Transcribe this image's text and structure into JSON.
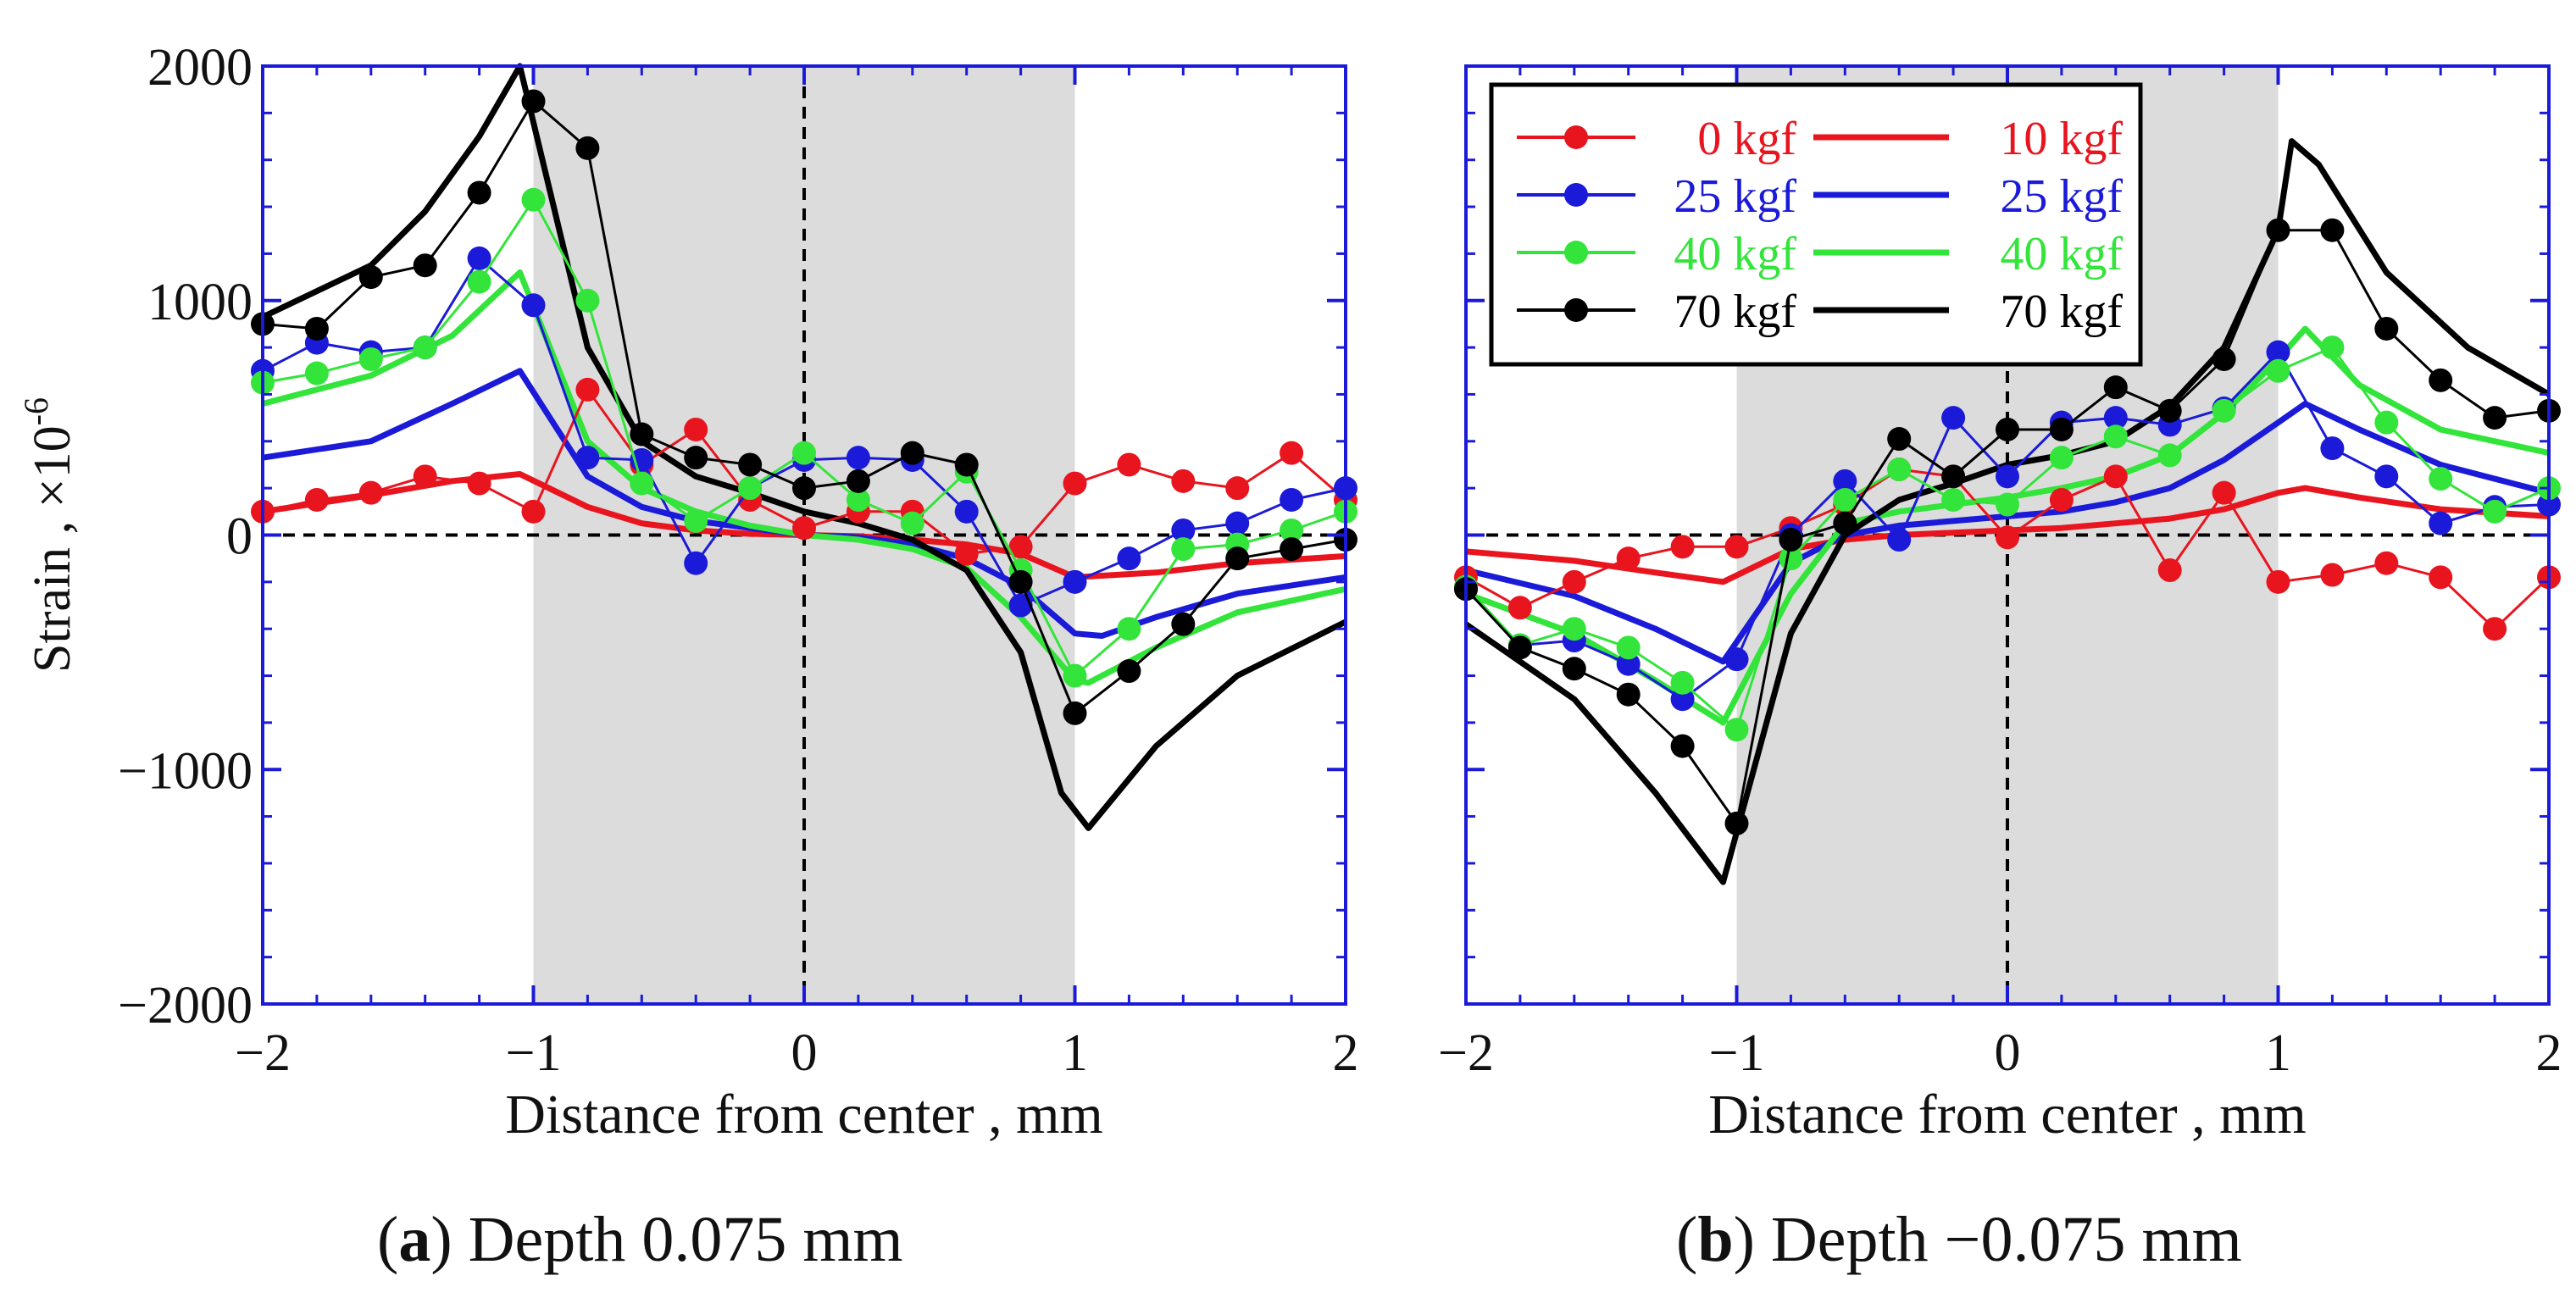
{
  "ylabel_main": "Strain ,",
  "ylabel_unit": "×10",
  "ylabel_exp": "-6",
  "legend": {
    "rows": [
      {
        "left": "0 kgf",
        "left_color": "#e8141e",
        "right": "10 kgf",
        "right_color": "#e8141e"
      },
      {
        "left": "25 kgf",
        "left_color": "#1a1ad8",
        "right": "25 kgf",
        "right_color": "#1a1ad8"
      },
      {
        "left": "40 kgf",
        "left_color": "#33e43a",
        "right": "40 kgf",
        "right_color": "#33e43a"
      },
      {
        "left": "70 kgf",
        "left_color": "#000000",
        "right": "70 kgf",
        "right_color": "#000000"
      }
    ]
  },
  "chart_data": [
    {
      "type": "line",
      "panel": "a",
      "caption_letter": "a",
      "caption_text": " Depth 0.075 mm",
      "xlabel": "Distance from center , mm",
      "ylabel": "Strain , ×10-6",
      "xlim": [
        -2,
        2
      ],
      "ylim": [
        -2000,
        2000
      ],
      "xticks": [
        -2,
        -1,
        0,
        1,
        2
      ],
      "yticks": [
        -2000,
        -1000,
        0,
        1000,
        2000
      ],
      "xtick_labels": [
        "−2",
        "−1",
        "0",
        "1",
        "2"
      ],
      "ytick_labels": [
        "−2000",
        "−1000",
        "0",
        "1000",
        "2000"
      ],
      "shaded_region": [
        -1,
        1
      ],
      "series": [
        {
          "name": "0 kgf",
          "kind": "marker",
          "color": "#e8141e",
          "x": [
            -2,
            -1.8,
            -1.6,
            -1.4,
            -1.2,
            -1,
            -0.8,
            -0.6,
            -0.4,
            -0.2,
            0,
            0.2,
            0.4,
            0.6,
            0.8,
            1,
            1.2,
            1.4,
            1.6,
            1.8,
            2
          ],
          "y": [
            100,
            150,
            180,
            250,
            220,
            100,
            620,
            300,
            450,
            150,
            30,
            100,
            100,
            -80,
            -50,
            220,
            300,
            230,
            200,
            350,
            150
          ]
        },
        {
          "name": "25 kgf",
          "kind": "marker",
          "color": "#1a1ad8",
          "x": [
            -2,
            -1.8,
            -1.6,
            -1.4,
            -1.2,
            -1,
            -0.8,
            -0.6,
            -0.4,
            -0.2,
            0,
            0.2,
            0.4,
            0.6,
            0.8,
            1,
            1.2,
            1.4,
            1.6,
            1.8,
            2
          ],
          "y": [
            700,
            820,
            780,
            800,
            1180,
            980,
            330,
            320,
            -120,
            200,
            320,
            330,
            320,
            100,
            -300,
            -200,
            -100,
            20,
            50,
            150,
            200
          ]
        },
        {
          "name": "40 kgf",
          "kind": "marker",
          "color": "#33e43a",
          "x": [
            -2,
            -1.8,
            -1.6,
            -1.4,
            -1.2,
            -1,
            -0.8,
            -0.6,
            -0.4,
            -0.2,
            0,
            0.2,
            0.4,
            0.6,
            0.8,
            1,
            1.2,
            1.4,
            1.6,
            1.8,
            2
          ],
          "y": [
            650,
            690,
            750,
            800,
            1080,
            1430,
            1000,
            220,
            60,
            200,
            350,
            150,
            50,
            270,
            -150,
            -600,
            -400,
            -60,
            -40,
            20,
            100
          ]
        },
        {
          "name": "70 kgf",
          "kind": "marker",
          "color": "#000000",
          "x": [
            -2,
            -1.8,
            -1.6,
            -1.4,
            -1.2,
            -1,
            -0.8,
            -0.6,
            -0.4,
            -0.2,
            0,
            0.2,
            0.4,
            0.6,
            0.8,
            1,
            1.2,
            1.4,
            1.6,
            1.8,
            2
          ],
          "y": [
            900,
            880,
            1100,
            1150,
            1460,
            1850,
            1650,
            430,
            330,
            300,
            200,
            230,
            350,
            300,
            -200,
            -760,
            -580,
            -380,
            -100,
            -60,
            -20
          ]
        },
        {
          "name": "10 kgf",
          "kind": "line",
          "color": "#e8141e",
          "x": [
            -2,
            -1.6,
            -1.3,
            -1.05,
            -0.8,
            -0.6,
            -0.4,
            -0.2,
            0,
            0.2,
            0.4,
            0.6,
            0.8,
            1,
            1.3,
            1.6,
            2
          ],
          "y": [
            100,
            170,
            230,
            260,
            120,
            50,
            20,
            5,
            0,
            -5,
            -20,
            -40,
            -80,
            -180,
            -160,
            -120,
            -90
          ]
        },
        {
          "name": "25 kgf",
          "kind": "line",
          "color": "#1a1ad8",
          "x": [
            -2,
            -1.6,
            -1.3,
            -1.05,
            -0.8,
            -0.6,
            -0.4,
            -0.2,
            0,
            0.2,
            0.4,
            0.6,
            0.8,
            1,
            1.1,
            1.3,
            1.6,
            2
          ],
          "y": [
            330,
            400,
            560,
            700,
            250,
            120,
            60,
            30,
            0,
            -10,
            -40,
            -100,
            -220,
            -420,
            -430,
            -350,
            -250,
            -180
          ]
        },
        {
          "name": "40 kgf",
          "kind": "line",
          "color": "#33e43a",
          "x": [
            -2,
            -1.6,
            -1.3,
            -1.05,
            -0.8,
            -0.6,
            -0.4,
            -0.2,
            0,
            0.2,
            0.4,
            0.6,
            0.8,
            1,
            1.05,
            1.3,
            1.6,
            2
          ],
          "y": [
            560,
            680,
            850,
            1120,
            400,
            200,
            100,
            40,
            0,
            -20,
            -60,
            -140,
            -350,
            -620,
            -630,
            -480,
            -330,
            -230
          ]
        },
        {
          "name": "70 kgf",
          "kind": "line",
          "color": "#000000",
          "x": [
            -2,
            -1.6,
            -1.4,
            -1.2,
            -1.05,
            -0.8,
            -0.6,
            -0.4,
            -0.2,
            0,
            0.2,
            0.4,
            0.6,
            0.8,
            0.95,
            1.05,
            1.3,
            1.6,
            2
          ],
          "y": [
            930,
            1150,
            1380,
            1700,
            2000,
            800,
            400,
            250,
            180,
            100,
            50,
            -20,
            -150,
            -500,
            -1100,
            -1250,
            -900,
            -600,
            -370
          ]
        }
      ]
    },
    {
      "type": "line",
      "panel": "b",
      "caption_letter": "b",
      "caption_text": " Depth −0.075 mm",
      "xlabel": "Distance from center , mm",
      "xlim": [
        -2,
        2
      ],
      "ylim": [
        -2000,
        2000
      ],
      "xticks": [
        -2,
        -1,
        0,
        1,
        2
      ],
      "yticks": [
        -2000,
        -1000,
        0,
        1000,
        2000
      ],
      "xtick_labels": [
        "−2",
        "−1",
        "0",
        "1",
        "2"
      ],
      "shaded_region": [
        -1,
        1
      ],
      "series": [
        {
          "name": "0 kgf",
          "kind": "marker",
          "color": "#e8141e",
          "x": [
            -2,
            -1.8,
            -1.6,
            -1.4,
            -1.2,
            -1,
            -0.8,
            -0.6,
            -0.4,
            -0.2,
            0,
            0.2,
            0.4,
            0.6,
            0.8,
            1,
            1.2,
            1.4,
            1.6,
            1.8,
            2
          ],
          "y": [
            -180,
            -310,
            -200,
            -100,
            -50,
            -50,
            30,
            130,
            280,
            250,
            -10,
            150,
            250,
            -150,
            180,
            -200,
            -170,
            -120,
            -180,
            -400,
            -180
          ]
        },
        {
          "name": "25 kgf",
          "kind": "marker",
          "color": "#1a1ad8",
          "x": [
            -2,
            -1.8,
            -1.6,
            -1.4,
            -1.2,
            -1,
            -0.8,
            -0.6,
            -0.4,
            -0.2,
            0,
            0.2,
            0.4,
            0.6,
            0.8,
            1,
            1.2,
            1.4,
            1.6,
            1.8,
            2
          ],
          "y": [
            -230,
            -470,
            -450,
            -550,
            -700,
            -530,
            0,
            230,
            -20,
            500,
            250,
            480,
            500,
            470,
            540,
            780,
            370,
            250,
            50,
            120,
            130
          ]
        },
        {
          "name": "40 kgf",
          "kind": "marker",
          "color": "#33e43a",
          "x": [
            -2,
            -1.8,
            -1.6,
            -1.4,
            -1.2,
            -1,
            -0.8,
            -0.6,
            -0.4,
            -0.2,
            0,
            0.2,
            0.4,
            0.6,
            0.8,
            1,
            1.2,
            1.4,
            1.6,
            1.8,
            2
          ],
          "y": [
            -220,
            -470,
            -400,
            -480,
            -630,
            -830,
            -100,
            150,
            280,
            150,
            130,
            330,
            420,
            340,
            530,
            700,
            800,
            480,
            240,
            100,
            200
          ]
        },
        {
          "name": "70 kgf",
          "kind": "marker",
          "color": "#000000",
          "x": [
            -2,
            -1.8,
            -1.6,
            -1.4,
            -1.2,
            -1,
            -0.8,
            -0.6,
            -0.4,
            -0.2,
            0,
            0.2,
            0.4,
            0.6,
            0.8,
            1,
            1.2,
            1.4,
            1.6,
            1.8,
            2
          ],
          "y": [
            -230,
            -480,
            -570,
            -680,
            -900,
            -1230,
            -20,
            50,
            410,
            250,
            450,
            450,
            630,
            530,
            750,
            1300,
            1300,
            880,
            660,
            500,
            530
          ]
        },
        {
          "name": "10 kgf",
          "kind": "line",
          "color": "#e8141e",
          "x": [
            -2,
            -1.6,
            -1.3,
            -1.05,
            -0.8,
            -0.6,
            -0.4,
            -0.2,
            0,
            0.2,
            0.4,
            0.6,
            0.8,
            1,
            1.1,
            1.3,
            1.6,
            2
          ],
          "y": [
            -70,
            -110,
            -160,
            -200,
            -60,
            -20,
            0,
            10,
            20,
            30,
            50,
            70,
            110,
            180,
            200,
            160,
            110,
            80
          ]
        },
        {
          "name": "25 kgf",
          "kind": "line",
          "color": "#1a1ad8",
          "x": [
            -2,
            -1.6,
            -1.3,
            -1.05,
            -0.8,
            -0.6,
            -0.4,
            -0.2,
            0,
            0.2,
            0.4,
            0.6,
            0.8,
            1,
            1.1,
            1.3,
            1.6,
            2
          ],
          "y": [
            -150,
            -260,
            -400,
            -540,
            -120,
            0,
            40,
            60,
            80,
            100,
            140,
            200,
            320,
            480,
            560,
            450,
            300,
            180
          ]
        },
        {
          "name": "40 kgf",
          "kind": "line",
          "color": "#33e43a",
          "x": [
            -2,
            -1.6,
            -1.3,
            -1.05,
            -0.8,
            -0.6,
            -0.4,
            -0.2,
            0,
            0.2,
            0.4,
            0.6,
            0.8,
            1,
            1.1,
            1.3,
            1.6,
            2
          ],
          "y": [
            -250,
            -420,
            -620,
            -800,
            -250,
            50,
            100,
            130,
            160,
            200,
            250,
            340,
            520,
            750,
            880,
            640,
            450,
            350
          ]
        },
        {
          "name": "70 kgf",
          "kind": "line",
          "color": "#000000",
          "x": [
            -2,
            -1.6,
            -1.3,
            -1.05,
            -0.8,
            -0.6,
            -0.4,
            -0.2,
            0,
            0.2,
            0.4,
            0.6,
            0.8,
            1,
            1.05,
            1.15,
            1.4,
            1.7,
            2
          ],
          "y": [
            -380,
            -700,
            -1100,
            -1480,
            -420,
            0,
            150,
            220,
            300,
            340,
            400,
            550,
            800,
            1300,
            1680,
            1580,
            1120,
            800,
            600
          ]
        }
      ]
    }
  ]
}
